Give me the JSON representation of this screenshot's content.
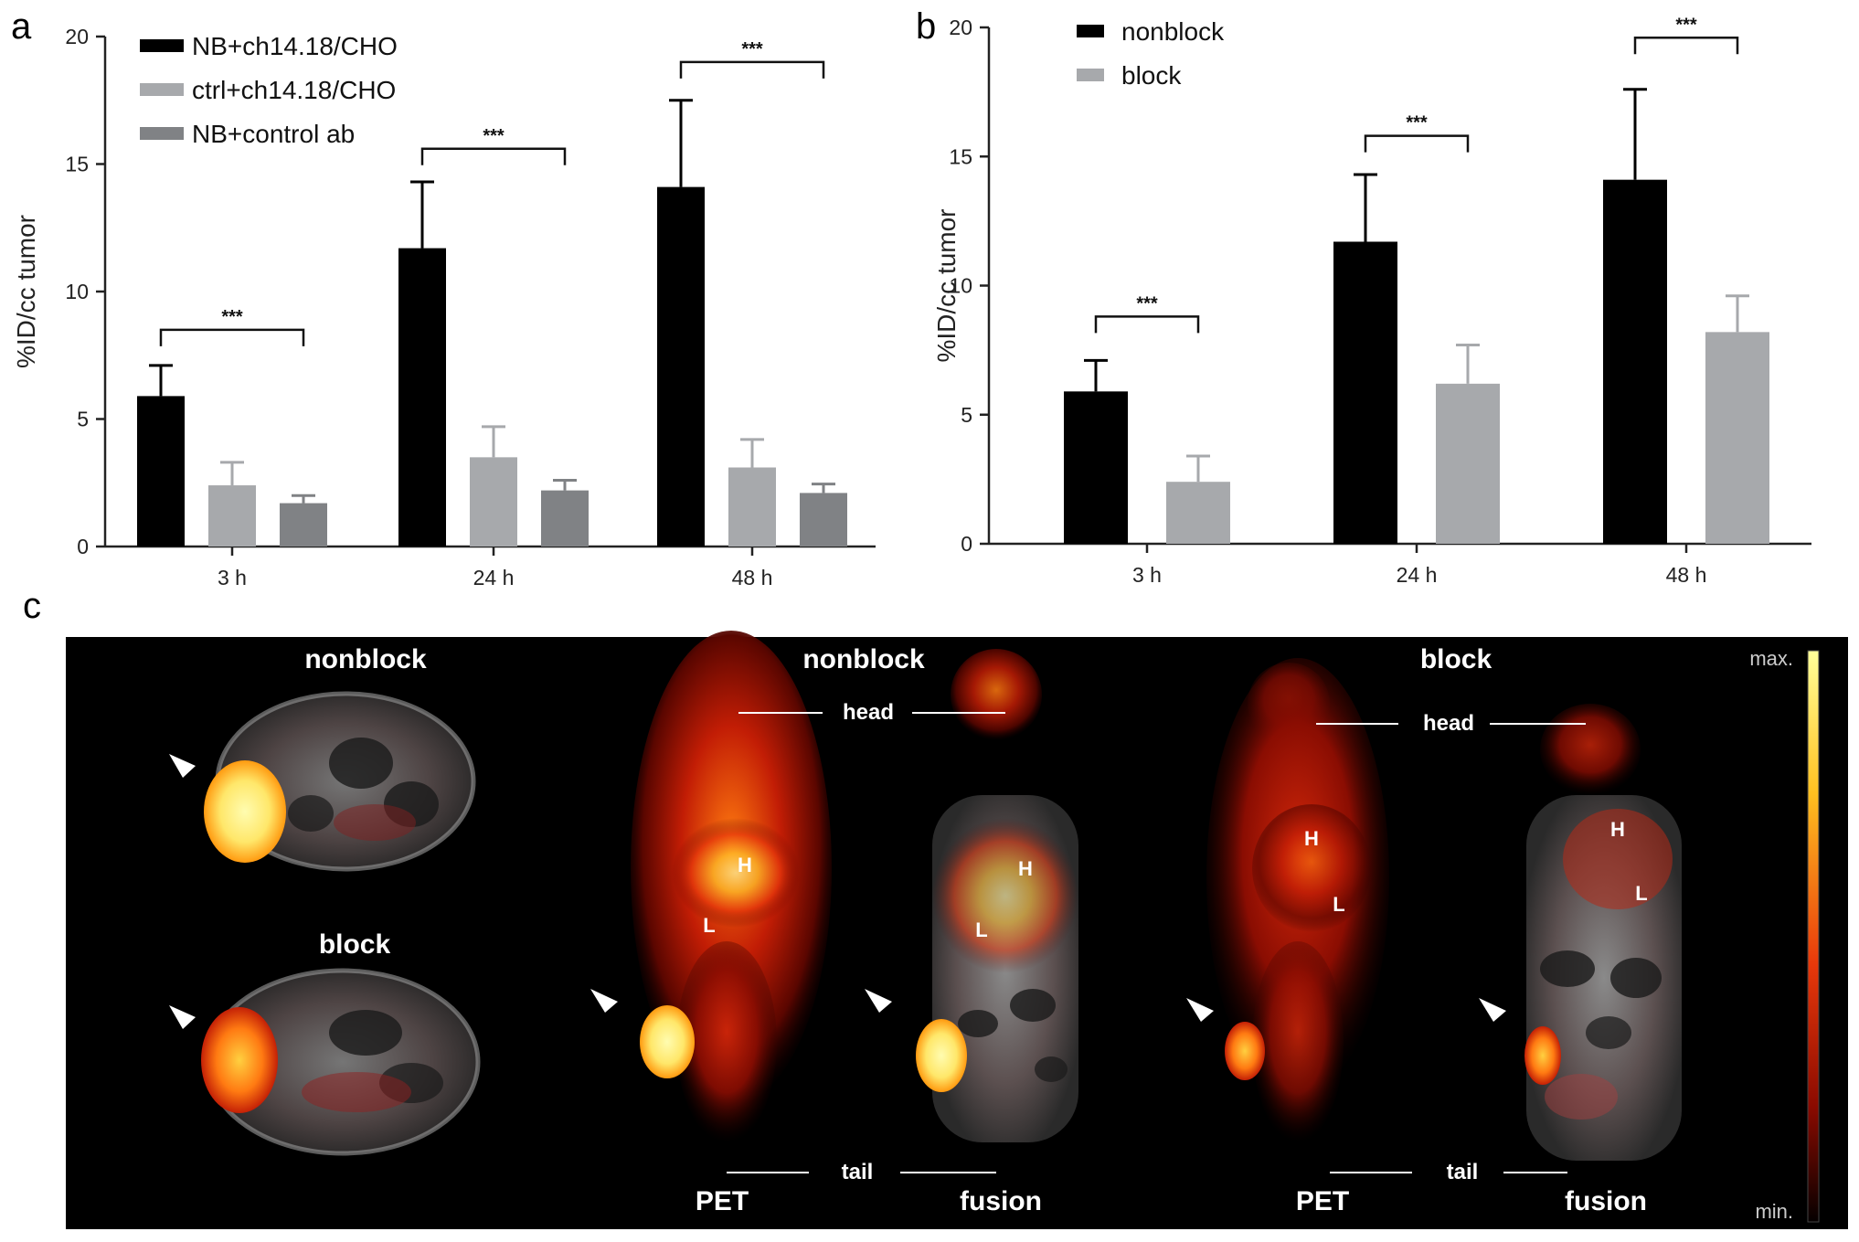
{
  "panel_labels": {
    "a": "a",
    "b": "b",
    "c": "c"
  },
  "chart_data": [
    {
      "panel": "a",
      "type": "bar",
      "ylabel": "%ID/cc tumor",
      "xlabel": "",
      "ylim": [
        0,
        20
      ],
      "yticks": [
        "0",
        "5",
        "10",
        "15",
        "20"
      ],
      "categories": [
        "3 h",
        "24 h",
        "48 h"
      ],
      "legend_position": "top-left",
      "series": [
        {
          "name": "NB+ch14.18/CHO",
          "color": "#000000",
          "values": [
            5.9,
            11.7,
            14.1
          ],
          "errors": [
            1.2,
            2.6,
            3.4
          ]
        },
        {
          "name": "ctrl+ch14.18/CHO",
          "color": "#a7a9ac",
          "values": [
            2.4,
            3.5,
            3.1
          ],
          "errors": [
            0.9,
            1.2,
            1.1
          ]
        },
        {
          "name": "NB+control ab",
          "color": "#808285",
          "values": [
            1.7,
            2.2,
            2.1
          ],
          "errors": [
            0.3,
            0.4,
            0.35
          ]
        }
      ],
      "significance": [
        {
          "category": 0,
          "label": "***",
          "y": 8.5
        },
        {
          "category": 1,
          "label": "***",
          "y": 15.6
        },
        {
          "category": 2,
          "label": "***",
          "y": 19.0
        }
      ]
    },
    {
      "panel": "b",
      "type": "bar",
      "ylabel": "%ID/cc tumor",
      "xlabel": "",
      "ylim": [
        0,
        20
      ],
      "yticks": [
        "0",
        "5",
        "10",
        "15",
        "20"
      ],
      "categories": [
        "3 h",
        "24 h",
        "48 h"
      ],
      "legend_position": "top-left",
      "series": [
        {
          "name": "nonblock",
          "color": "#000000",
          "values": [
            5.9,
            11.7,
            14.1
          ],
          "errors": [
            1.2,
            2.6,
            3.5
          ]
        },
        {
          "name": "block",
          "color": "#a7a9ac",
          "values": [
            2.4,
            6.2,
            8.2
          ],
          "errors": [
            1.0,
            1.5,
            1.4
          ]
        }
      ],
      "significance": [
        {
          "category": 0,
          "label": "***",
          "y": 8.8
        },
        {
          "category": 1,
          "label": "***",
          "y": 15.8
        },
        {
          "category": 2,
          "label": "***",
          "y": 19.6
        }
      ]
    }
  ],
  "panel_c": {
    "axial": {
      "top_title": "nonblock",
      "bottom_title": "block"
    },
    "coronal_nonblock": {
      "title": "nonblock",
      "head": "head",
      "tail": "tail",
      "pet": "PET",
      "fusion": "fusion",
      "h": "H",
      "l": "L"
    },
    "coronal_block": {
      "title": "block",
      "head": "head",
      "tail": "tail",
      "pet": "PET",
      "fusion": "fusion",
      "h": "H",
      "l": "L"
    },
    "colorbar": {
      "max": "max.",
      "min": "min."
    }
  }
}
